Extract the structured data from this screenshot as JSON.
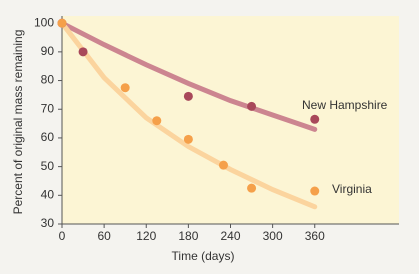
{
  "chart_data": {
    "type": "scatter",
    "x_label": "Time (days)",
    "y_label": "Percent of original mass remaining",
    "xlim": [
      0,
      480
    ],
    "ylim": [
      30,
      102.5
    ],
    "xticks": [
      0,
      60,
      120,
      180,
      240,
      300,
      360
    ],
    "yticks": [
      30,
      40,
      50,
      60,
      70,
      80,
      90,
      100
    ],
    "series": [
      {
        "name": "New Hampshire",
        "color": "#a8485a",
        "fit_color": "#cc8590",
        "x": [
          0,
          30,
          180,
          270,
          360
        ],
        "values": [
          100,
          90,
          74.5,
          71,
          66.5
        ],
        "fit": {
          "x": [
            0,
            60,
            120,
            180,
            240,
            300,
            360
          ],
          "values": [
            100,
            92.5,
            85.5,
            79,
            73,
            68,
            63
          ]
        }
      },
      {
        "name": "Virginia",
        "color": "#f5a04a",
        "fit_color": "#fbd49e",
        "x": [
          0,
          90,
          135,
          180,
          230,
          270,
          360
        ],
        "values": [
          100,
          77.5,
          66,
          59.5,
          50.5,
          42.5,
          41.5
        ],
        "fit": {
          "x": [
            0,
            60,
            120,
            180,
            240,
            300,
            360
          ],
          "values": [
            100,
            81,
            67,
            57,
            49,
            42,
            36
          ]
        }
      }
    ]
  }
}
